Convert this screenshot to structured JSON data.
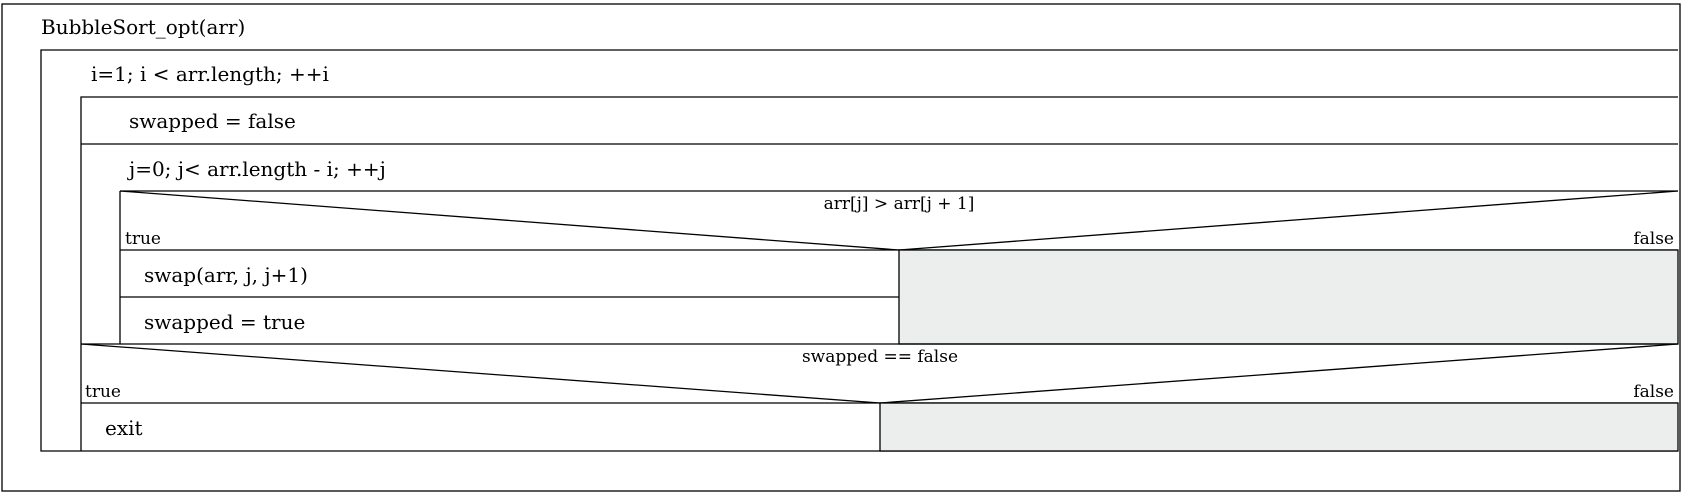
{
  "diagram": {
    "title": "BubbleSort_opt(arr)",
    "outer_loop": "i=1; i < arr.length; ++i",
    "init": "swapped = false",
    "inner_loop": "j=0; j< arr.length - i; ++j",
    "cond1": {
      "text": "arr[j] > arr[j + 1]",
      "true_label": "true",
      "false_label": "false",
      "true_steps": [
        "swap(arr, j, j+1)",
        "swapped = true"
      ]
    },
    "cond2": {
      "text": "swapped == false",
      "true_label": "true",
      "false_label": "false",
      "true_steps": [
        "exit"
      ]
    }
  },
  "colors": {
    "line": "#000000",
    "empty_branch": "#eceeee",
    "background": "#ffffff"
  }
}
